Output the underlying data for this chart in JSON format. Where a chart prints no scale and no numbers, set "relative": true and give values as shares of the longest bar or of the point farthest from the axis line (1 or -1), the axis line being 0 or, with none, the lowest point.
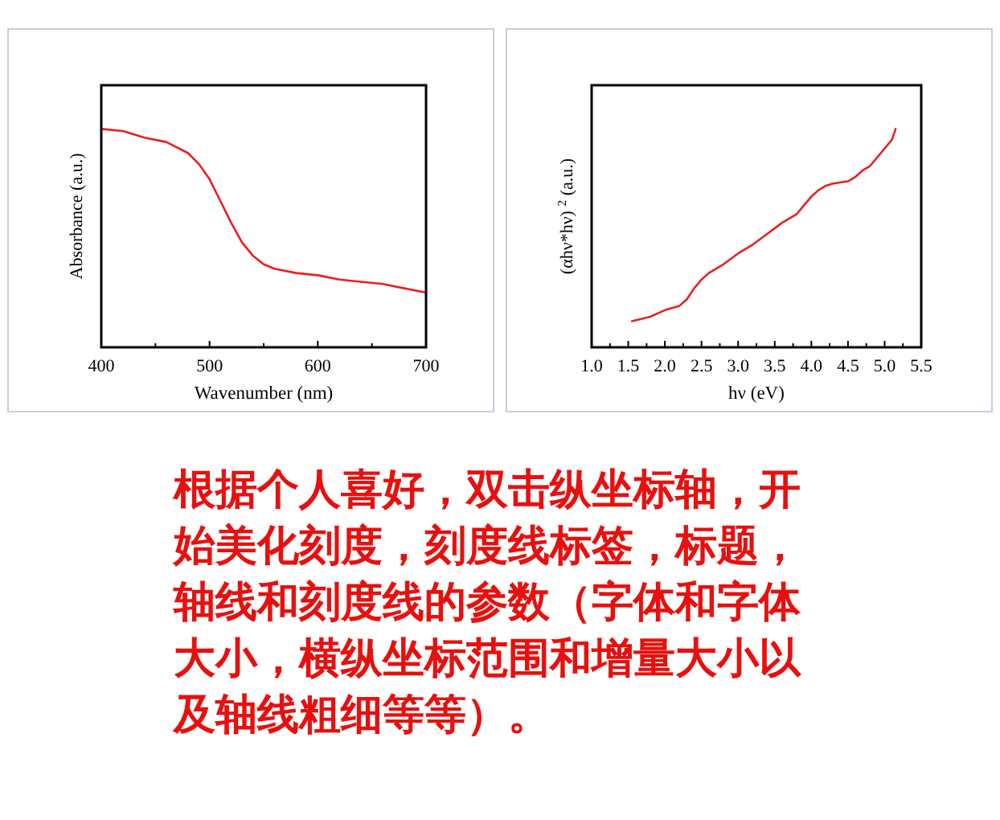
{
  "chart_data": [
    {
      "type": "line",
      "relative": true,
      "xlabel": "Wavenumber (nm)",
      "ylabel": "Absorbance (a.u.)",
      "xlim": [
        400,
        700
      ],
      "xticks": [
        400,
        {
          "value": 450,
          "label": null
        },
        500,
        {
          "value": 550,
          "label": null
        },
        600,
        {
          "value": 650,
          "label": null
        },
        700
      ],
      "tick_labels": "x",
      "series": [
        {
          "color": "#e8201e",
          "x": [
            400,
            420,
            440,
            460,
            480,
            490,
            500,
            510,
            520,
            530,
            540,
            550,
            560,
            580,
            600,
            620,
            640,
            660,
            680,
            700
          ],
          "values": [
            1,
            0.99,
            0.96,
            0.94,
            0.89,
            0.84,
            0.77,
            0.67,
            0.57,
            0.48,
            0.42,
            0.38,
            0.36,
            0.34,
            0.33,
            0.31,
            0.3,
            0.29,
            0.27,
            0.25
          ]
        }
      ]
    },
    {
      "type": "line",
      "relative": true,
      "xlabel": "hν (eV)",
      "ylabel": "(αhν*hν) $^{2}$ (a.u.)",
      "xlim": [
        1.0,
        5.5
      ],
      "xticks": [
        {
          "value": 1.0,
          "label": "1.0"
        },
        {
          "value": 1.25,
          "label": null
        },
        {
          "value": 1.5,
          "label": "1.5"
        },
        {
          "value": 1.75,
          "label": null
        },
        {
          "value": 2.0,
          "label": "2.0"
        },
        {
          "value": 2.25,
          "label": null
        },
        {
          "value": 2.5,
          "label": "2.5"
        },
        {
          "value": 2.75,
          "label": null
        },
        {
          "value": 3.0,
          "label": "3.0"
        },
        {
          "value": 3.25,
          "label": null
        },
        {
          "value": 3.5,
          "label": "3.5"
        },
        {
          "value": 3.75,
          "label": null
        },
        {
          "value": 4.0,
          "label": "4.0"
        },
        {
          "value": 4.25,
          "label": null
        },
        {
          "value": 4.5,
          "label": "4.5"
        },
        {
          "value": 4.75,
          "label": null
        },
        {
          "value": 5.0,
          "label": "5.0"
        },
        {
          "value": 5.25,
          "label": null
        },
        {
          "value": 5.5,
          "label": "5.5"
        }
      ],
      "tick_labels": "x",
      "series": [
        {
          "color": "#e8201e",
          "x": [
            1.55,
            1.8,
            2.0,
            2.2,
            2.3,
            2.4,
            2.5,
            2.6,
            2.8,
            3.0,
            3.2,
            3.4,
            3.6,
            3.8,
            3.9,
            4.0,
            4.1,
            4.2,
            4.3,
            4.5,
            4.6,
            4.7,
            4.8,
            4.9,
            5.0,
            5.1,
            5.15
          ],
          "values": [
            0.12,
            0.14,
            0.17,
            0.19,
            0.22,
            0.27,
            0.31,
            0.34,
            0.38,
            0.43,
            0.47,
            0.52,
            0.57,
            0.61,
            0.65,
            0.69,
            0.72,
            0.74,
            0.75,
            0.76,
            0.78,
            0.81,
            0.83,
            0.87,
            0.91,
            0.95,
            1
          ]
        }
      ]
    },
    {
      "type": "other",
      "annotations": [
        "根据个人喜好，双击纵坐标轴，开始美化刻度，刻度线标签，标题，轴线和刻度线的参数（字体和字体大小，横纵坐标范围和增量大小以及轴线粗细等等）。"
      ]
    }
  ]
}
